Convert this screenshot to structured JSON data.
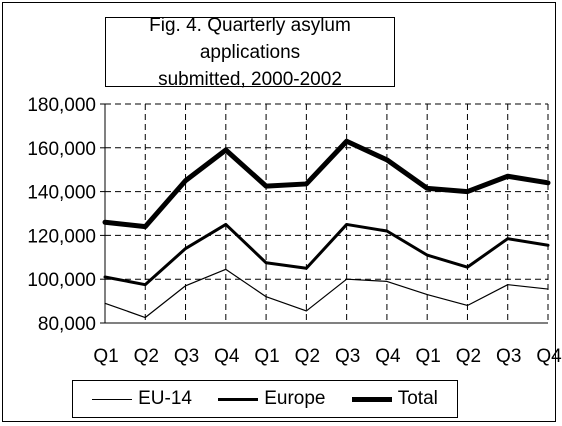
{
  "chart_data": {
    "type": "line",
    "title": "Fig. 4. Quarterly asylum applications submitted, 2000-2002",
    "title_lines": [
      "Fig. 4. Quarterly asylum applications",
      "submitted, 2000-2002"
    ],
    "xlabel": "",
    "ylabel": "",
    "categories": [
      "Q1",
      "Q2",
      "Q3",
      "Q4",
      "Q1",
      "Q2",
      "Q3",
      "Q4",
      "Q1",
      "Q2",
      "Q3",
      "Q4"
    ],
    "ylim": [
      80000,
      180000
    ],
    "yticks": [
      "80,000",
      "100,000",
      "120,000",
      "140,000",
      "160,000",
      "180,000"
    ],
    "ytick_values": [
      80000,
      100000,
      120000,
      140000,
      160000,
      180000
    ],
    "grid": "dashed",
    "legend_position": "bottom",
    "series": [
      {
        "name": "EU-14",
        "line_weight": "thin",
        "values": [
          89000,
          82500,
          97000,
          104500,
          92000,
          85500,
          100000,
          99000,
          93000,
          88000,
          97500,
          95500
        ]
      },
      {
        "name": "Europe",
        "line_weight": "medium",
        "values": [
          101000,
          97500,
          114000,
          125000,
          107500,
          105000,
          125000,
          122000,
          111000,
          105500,
          118500,
          115500
        ]
      },
      {
        "name": "Total",
        "line_weight": "thick",
        "values": [
          126000,
          124000,
          145000,
          159000,
          142500,
          143500,
          163000,
          154500,
          141500,
          140000,
          147000,
          144000
        ]
      }
    ]
  }
}
